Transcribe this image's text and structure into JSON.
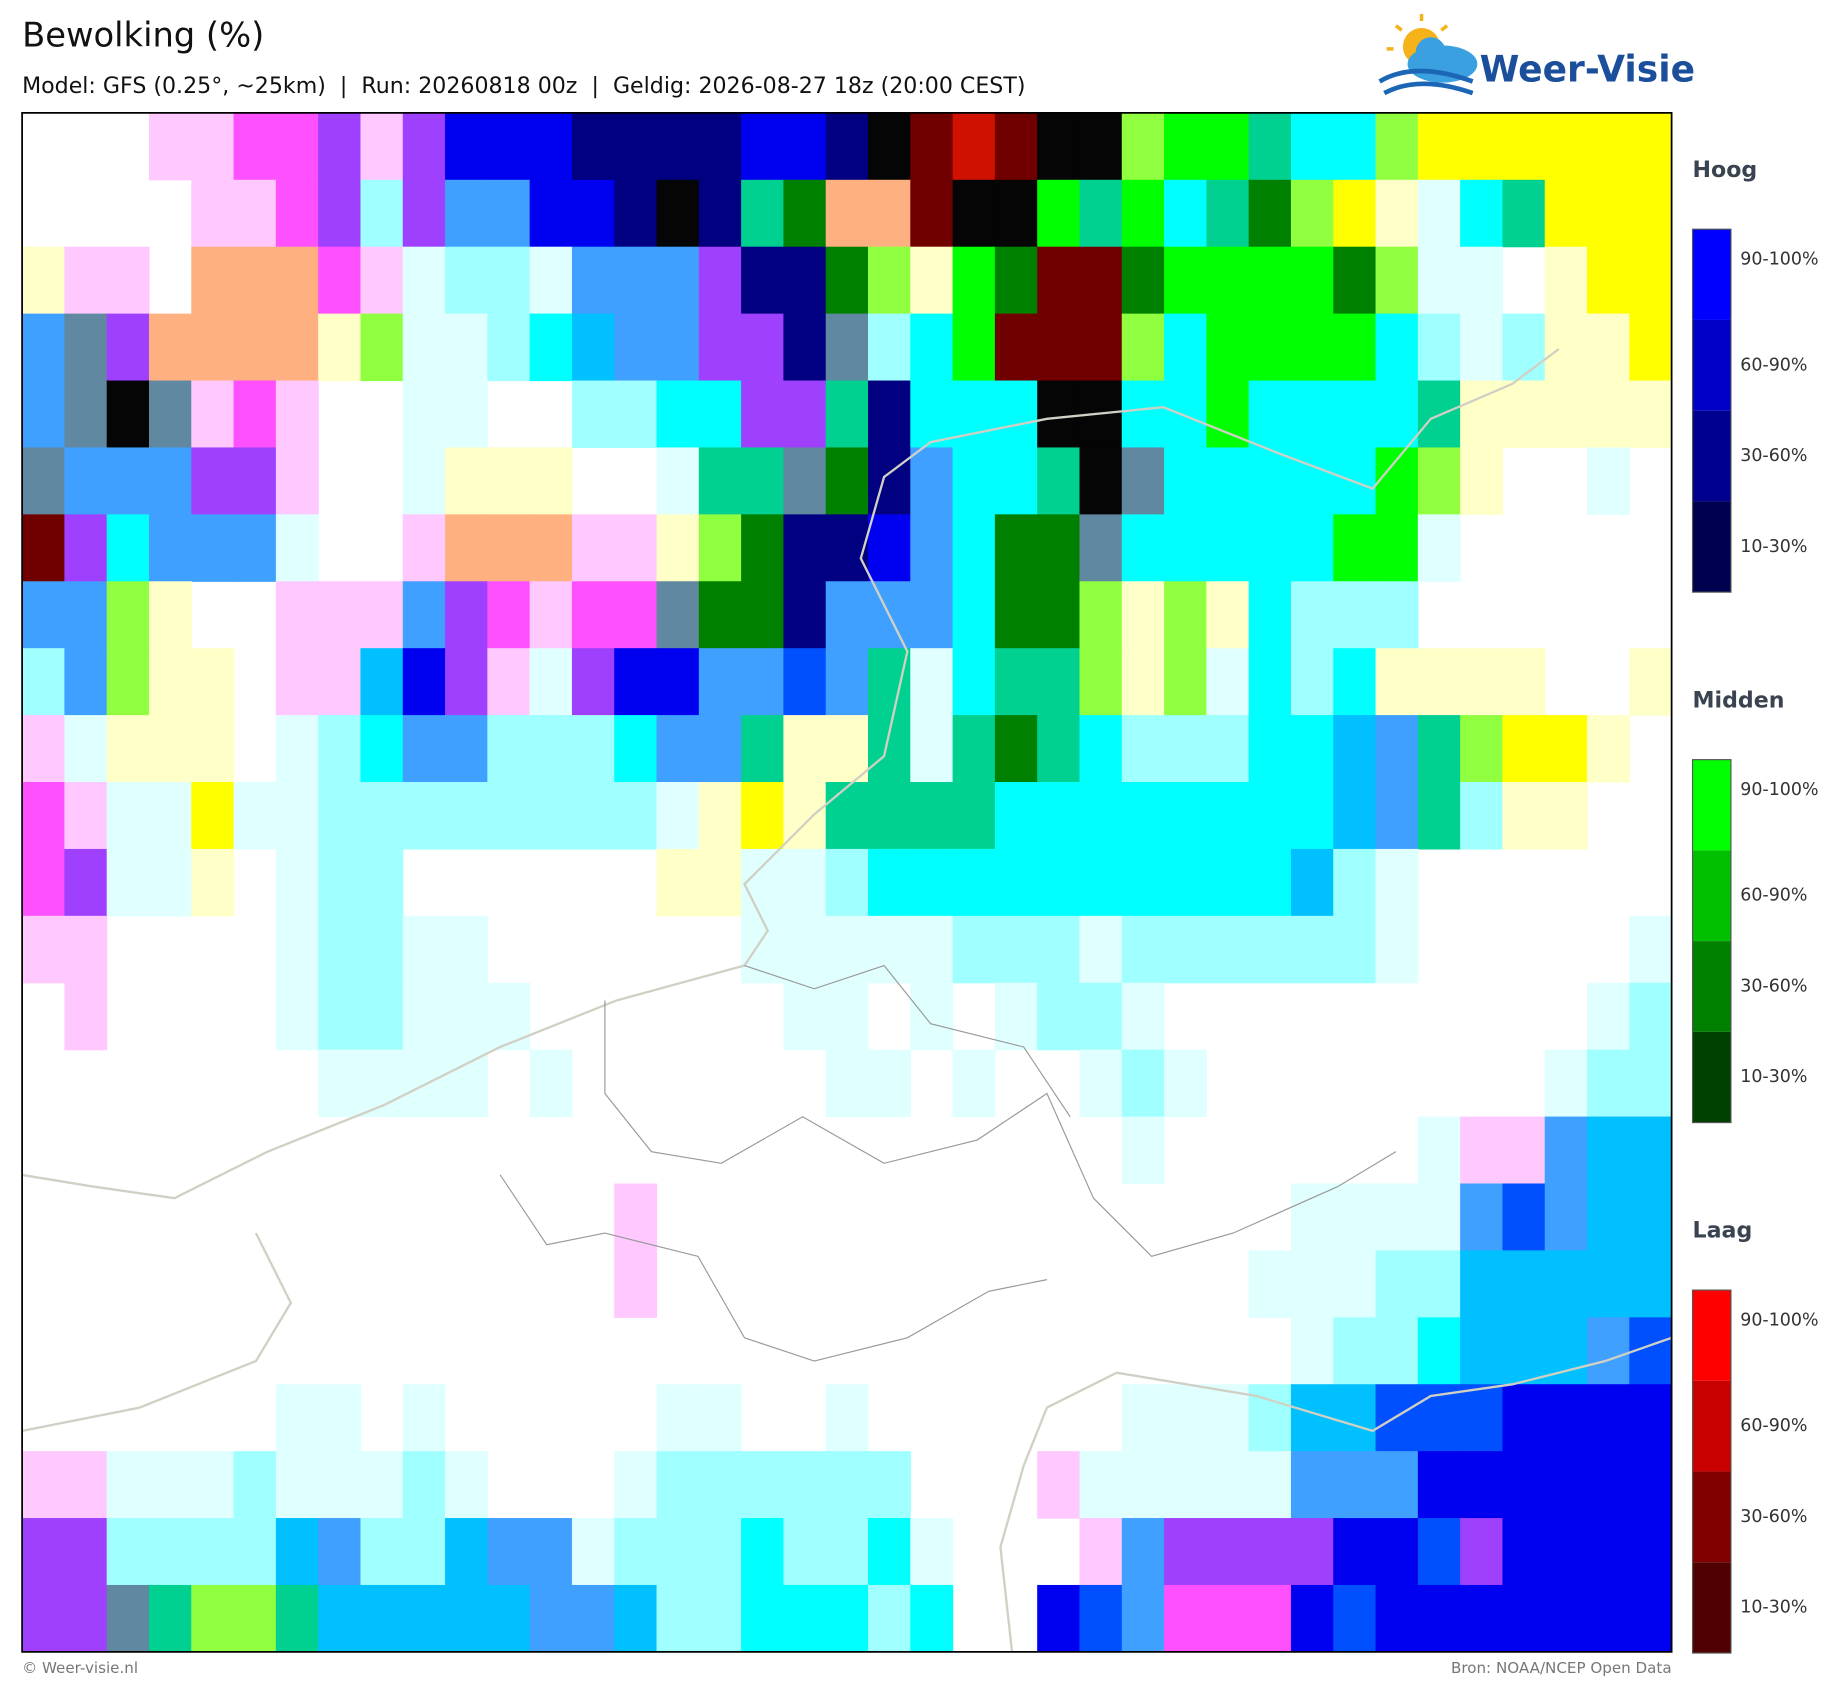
{
  "header": {
    "title": "Bewolking (%)",
    "subtitle": "Model: GFS (0.25°, ~25km)  |  Run: 20260818 00z  |  Geldig: 2026-08-27 18z (20:00 CEST)",
    "logo": "Weer-Visie"
  },
  "legend": [
    {
      "title": "Hoog",
      "labels": [
        "90-100%",
        "60-90%",
        "30-60%",
        "10-30%"
      ]
    },
    {
      "title": "Midden",
      "labels": [
        "90-100%",
        "60-90%",
        "30-60%",
        "10-30%"
      ]
    },
    {
      "title": "Laag",
      "labels": [
        "90-100%",
        "60-90%",
        "30-60%",
        "10-30%"
      ]
    }
  ],
  "footer": {
    "left": "© Weer-visie.nl",
    "right": "Bron: NOAA/NCEP Open Data"
  }
}
